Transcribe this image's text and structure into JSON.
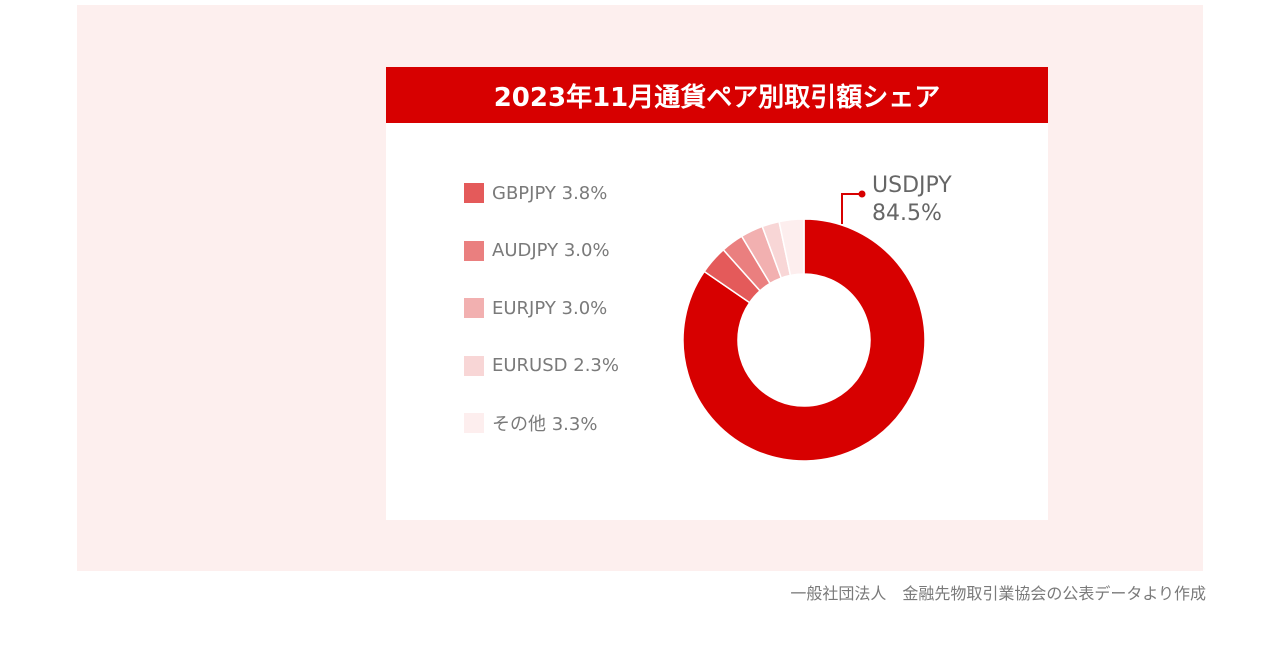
{
  "chart_data": {
    "type": "pie",
    "title": "2023年11月通貨ペア別取引額シェア",
    "donut": true,
    "slices": [
      {
        "label": "USDJPY",
        "value": 84.5,
        "display": "84.5%",
        "color": "#d70000"
      },
      {
        "label": "GBPJPY",
        "value": 3.8,
        "display": "3.8%",
        "color": "#e45a5a"
      },
      {
        "label": "AUDJPY",
        "value": 3.0,
        "display": "3.0%",
        "color": "#ea7f7f"
      },
      {
        "label": "EURJPY",
        "value": 3.0,
        "display": "3.0%",
        "color": "#f2b0b0"
      },
      {
        "label": "EURUSD",
        "value": 2.3,
        "display": "2.3%",
        "color": "#f8d6d6"
      },
      {
        "label": "その他",
        "value": 3.3,
        "display": "3.3%",
        "color": "#fdeeee"
      }
    ],
    "legend_placement": "left",
    "callout": {
      "label": "USDJPY",
      "value": "84.5%"
    }
  },
  "source": "一般社団法人　金融先物取引業協会の公表データより作成"
}
